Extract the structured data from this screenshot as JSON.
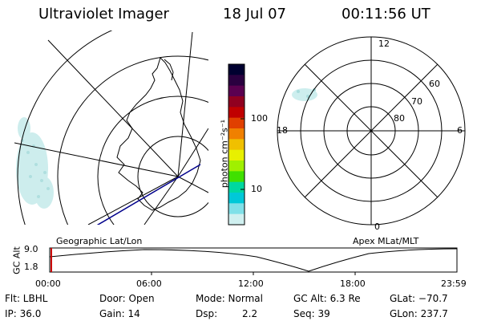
{
  "header": {
    "instrument": "Ultraviolet Imager",
    "date": "18 Jul 07",
    "time": "00:11:56 UT"
  },
  "colorbar": {
    "unit_label": "photon cm⁻²s⁻¹",
    "ticks": [
      "100",
      "10"
    ],
    "colors": [
      "#000030",
      "#2a0040",
      "#5a0050",
      "#900020",
      "#c00000",
      "#e04000",
      "#f08000",
      "#f0c000",
      "#e8f000",
      "#a0f000",
      "#40e000",
      "#00d8a0",
      "#00c8d8",
      "#80e0e8",
      "#d0f0f0"
    ]
  },
  "left_map": {
    "label": "Geographic Lat/Lon"
  },
  "right_map": {
    "label": "Apex MLat/MLT",
    "mlt_labels": {
      "top": "12",
      "right": "6",
      "bottom": "0",
      "left": "18"
    },
    "mlat_labels": [
      "60",
      "70",
      "80"
    ]
  },
  "altitude_plot": {
    "ylabel": "GC Alt",
    "y_ticks": [
      "9.0",
      "1.8"
    ],
    "x_ticks": [
      "00:00",
      "06:00",
      "12:00",
      "18:00",
      "23:59"
    ],
    "current_time_marker_color": "#cc0000"
  },
  "info": {
    "filter": "Flt: LBHL",
    "door": "Door: Open",
    "mode": "Mode: Normal",
    "gc_alt": "GC Alt: 6.3 Re",
    "glat": "GLat: −70.7",
    "ip": "IP: 36.0",
    "gain": "Gain: 14",
    "dsp_label": "Dsp:",
    "dsp_value": "2.2",
    "seq": "Seq: 39",
    "glon": "GLon: 237.7"
  }
}
